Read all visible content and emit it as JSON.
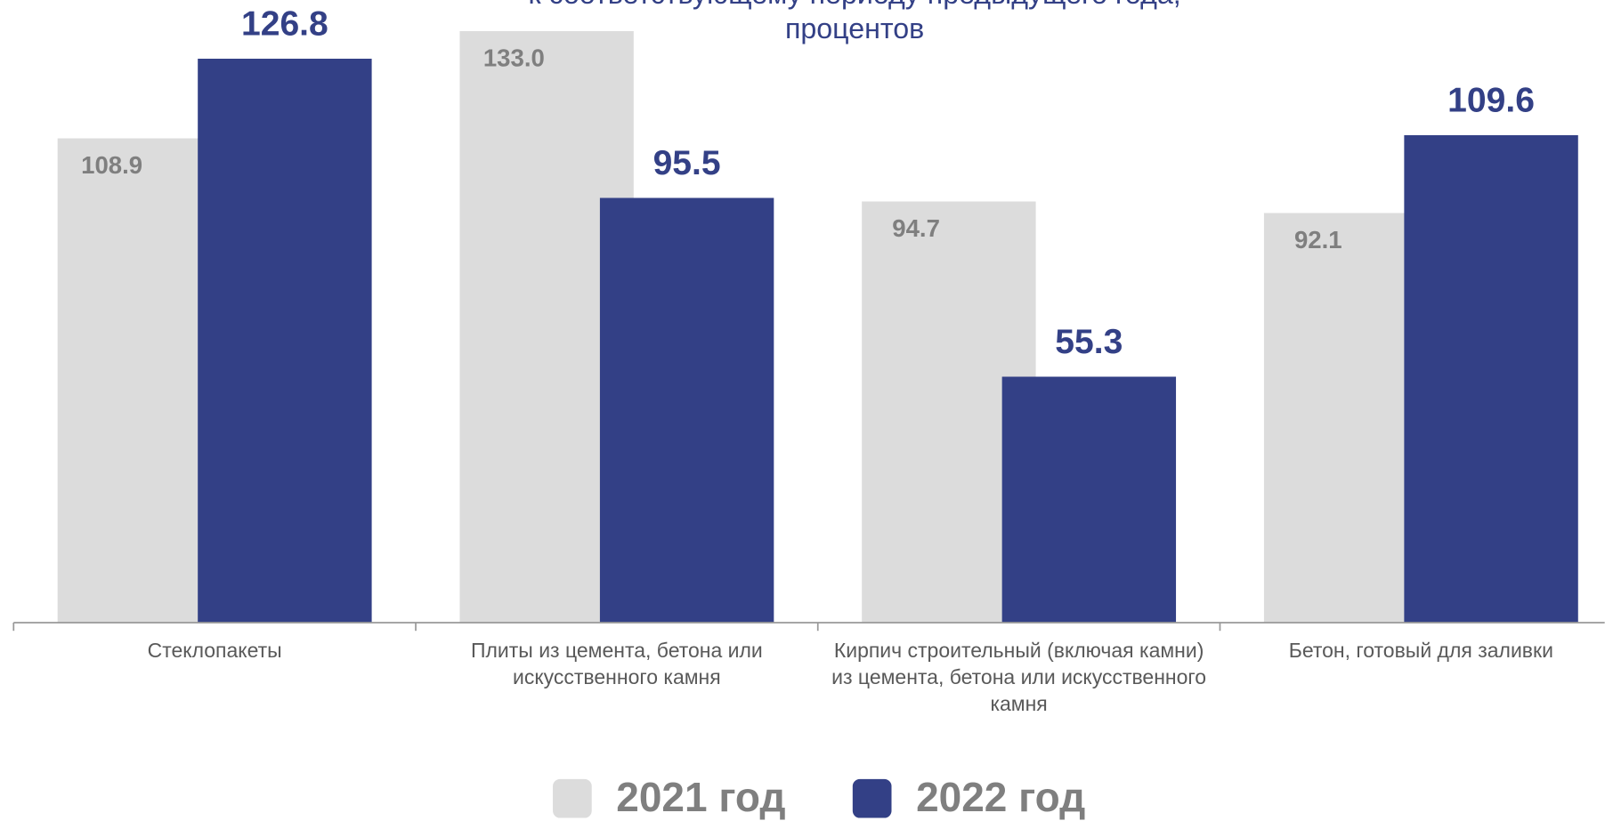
{
  "chart_data": {
    "type": "bar",
    "title_lines": [
      "к соответствующему периоду предыдущего года,",
      "процентов"
    ],
    "categories": [
      "Стеклопакеты",
      "Плиты из цемента, бетона или искусственного камня",
      "Кирпич строительный (включая камни) из цемента, бетона или искусственного камня",
      "Бетон, готовый для заливки"
    ],
    "series": [
      {
        "name": "2021 год",
        "color": "#dcdcdc",
        "values": [
          108.9,
          133.0,
          94.7,
          92.1
        ],
        "value_labels": [
          "108.9",
          "133.0",
          "94.7",
          "92.1"
        ]
      },
      {
        "name": "2022 год",
        "color": "#334086",
        "values": [
          126.8,
          95.5,
          55.3,
          109.6
        ],
        "value_labels": [
          "126.8",
          "95.5",
          "55.3",
          "109.6"
        ]
      }
    ],
    "ylim": [
      0,
      140
    ]
  }
}
